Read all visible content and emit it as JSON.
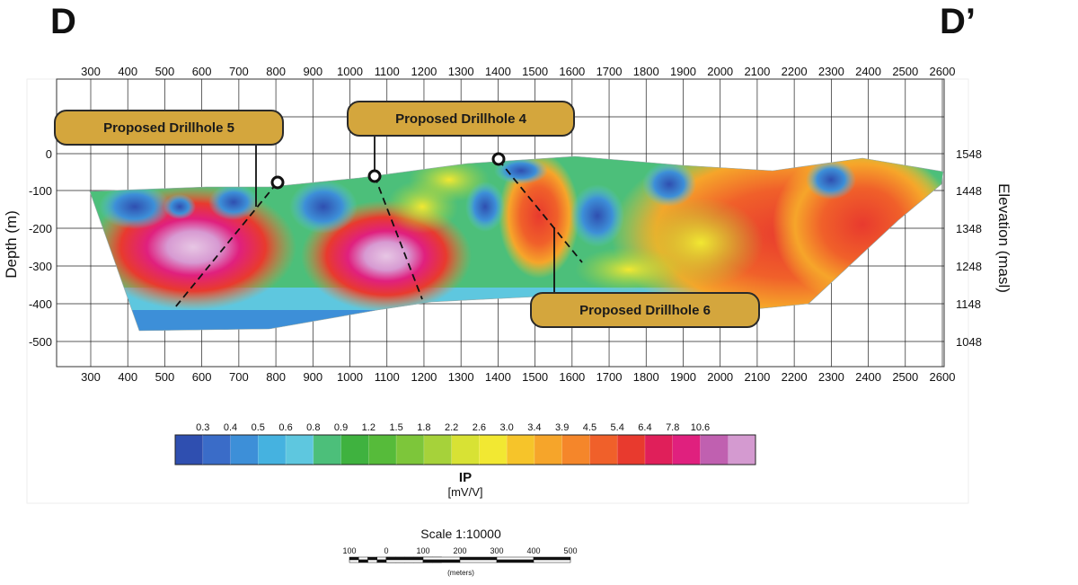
{
  "section": {
    "left_label": "D",
    "right_label": "D’"
  },
  "axes": {
    "x_ticks": [
      300,
      400,
      500,
      600,
      700,
      800,
      900,
      1000,
      1100,
      1200,
      1300,
      1400,
      1500,
      1600,
      1700,
      1800,
      1900,
      2000,
      2100,
      2200,
      2300,
      2400,
      2500,
      2600
    ],
    "depth_ticks": [
      "0",
      "-100",
      "-200",
      "-300",
      "-400",
      "-500"
    ],
    "elevation_ticks": [
      "1548",
      "1448",
      "1348",
      "1248",
      "1148",
      "1048"
    ],
    "depth_label": "Depth (m)",
    "elevation_label": "Elevation (masl)"
  },
  "drillholes": [
    {
      "label": "Proposed Drillhole 5",
      "collar_x": 800
    },
    {
      "label": "Proposed Drillhole 4",
      "collar_x": 1060
    },
    {
      "label": "Proposed Drillhole 6",
      "collar_x": 1400
    }
  ],
  "legend": {
    "values": [
      "0.3",
      "0.4",
      "0.5",
      "0.6",
      "0.8",
      "0.9",
      "1.2",
      "1.5",
      "1.8",
      "2.2",
      "2.6",
      "3.0",
      "3.4",
      "3.9",
      "4.5",
      "5.4",
      "6.4",
      "7.8",
      "10.6"
    ],
    "colors": [
      "#2f4fb0",
      "#3a6cc8",
      "#3d8fd8",
      "#45b2e0",
      "#5ec7df",
      "#4cbf7a",
      "#3fb23f",
      "#56bb3a",
      "#7dc63a",
      "#a6d23a",
      "#d8e234",
      "#f2e832",
      "#f6c42a",
      "#f6a52a",
      "#f5862a",
      "#f0602a",
      "#e83a2e",
      "#e01f5a",
      "#e0207e",
      "#c060b0",
      "#d49ad0"
    ],
    "title": "IP",
    "unit": "[mV/V]"
  },
  "scale": {
    "title": "Scale 1:10000",
    "labels": [
      "100",
      "0",
      "100",
      "200",
      "300",
      "400",
      "500"
    ],
    "unit": "(meters)"
  }
}
